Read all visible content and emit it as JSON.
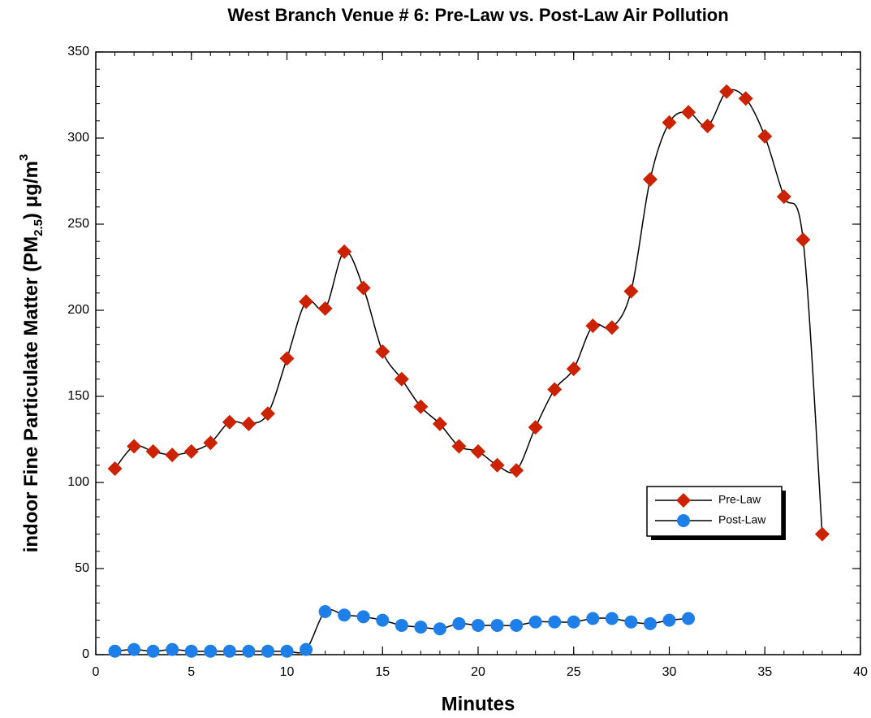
{
  "chart_data": {
    "type": "line",
    "title": "West Branch Venue # 6:  Pre-Law vs. Post-Law Air Pollution",
    "x_label": "Minutes",
    "y_label": {
      "text": "indoor Fine Particulate Matter (PM",
      "sub": "2.5",
      "text2": ") μg/m",
      "sup": "3"
    },
    "xlim": [
      0,
      40
    ],
    "xticks": [
      0,
      5,
      10,
      15,
      20,
      25,
      30,
      35,
      40
    ],
    "ylim": [
      0,
      350
    ],
    "yticks": [
      0,
      50,
      100,
      150,
      200,
      250,
      300,
      350
    ],
    "legend": "lower right",
    "series": [
      {
        "name": "Pre-Law",
        "color": "#cc2200",
        "marker": "diamond",
        "x": [
          1,
          2,
          3,
          4,
          5,
          6,
          7,
          8,
          9,
          10,
          11,
          12,
          13,
          14,
          15,
          16,
          17,
          18,
          19,
          20,
          21,
          22,
          23,
          24,
          25,
          26,
          27,
          28,
          29,
          30,
          31,
          32,
          33,
          34,
          35,
          36,
          37,
          38
        ],
        "values": [
          108,
          121,
          118,
          116,
          118,
          123,
          135,
          134,
          140,
          172,
          205,
          201,
          234,
          213,
          176,
          160,
          144,
          134,
          121,
          118,
          110,
          107,
          132,
          154,
          166,
          191,
          190,
          211,
          276,
          309,
          315,
          307,
          327,
          323,
          301,
          266,
          241,
          70
        ]
      },
      {
        "name": "Post-Law",
        "color": "#1e7fe8",
        "marker": "circle",
        "x": [
          1,
          2,
          3,
          4,
          5,
          6,
          7,
          8,
          9,
          10,
          11,
          12,
          13,
          14,
          15,
          16,
          17,
          18,
          19,
          20,
          21,
          22,
          23,
          24,
          25,
          26,
          27,
          28,
          29,
          30,
          31
        ],
        "values": [
          2,
          3,
          2,
          3,
          2,
          2,
          2,
          2,
          2,
          2,
          3,
          25,
          23,
          22,
          20,
          17,
          16,
          15,
          18,
          17,
          17,
          17,
          19,
          19,
          19,
          21,
          21,
          19,
          18,
          20,
          21
        ]
      }
    ]
  }
}
